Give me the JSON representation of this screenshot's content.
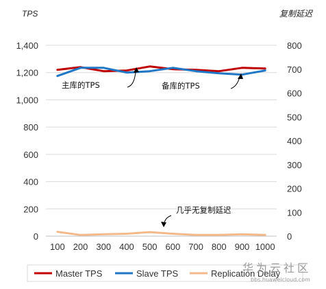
{
  "chart_data": {
    "type": "line",
    "x": [
      100,
      200,
      300,
      400,
      500,
      600,
      700,
      800,
      900,
      1000
    ],
    "left_axis": {
      "title": "TPS",
      "range": [
        0,
        1400
      ],
      "ticks": [
        "0",
        "200",
        "400",
        "600",
        "800",
        "1,000",
        "1,200",
        "1,400"
      ]
    },
    "right_axis": {
      "title": "复制延迟",
      "range": [
        0,
        800
      ],
      "ticks": [
        "0",
        "100",
        "200",
        "300",
        "400",
        "500",
        "600",
        "700",
        "800"
      ]
    },
    "x_ticks": [
      "100",
      "200",
      "300",
      "400",
      "500",
      "600",
      "700",
      "800",
      "900",
      "1000"
    ],
    "series": [
      {
        "name": "Master TPS",
        "axis": "left",
        "color": "#c00000",
        "values": [
          1220,
          1240,
          1210,
          1215,
          1245,
          1225,
          1220,
          1210,
          1235,
          1230
        ]
      },
      {
        "name": "Slave TPS",
        "axis": "left",
        "color": "#1f77c6",
        "values": [
          1175,
          1235,
          1235,
          1200,
          1210,
          1235,
          1210,
          1195,
          1185,
          1215
        ]
      },
      {
        "name": "Replication Delay",
        "axis": "right",
        "color": "#f4b98a",
        "values": [
          18,
          5,
          8,
          10,
          17,
          10,
          5,
          5,
          8,
          5
        ]
      }
    ],
    "annotations": [
      {
        "text": "主库的TPS"
      },
      {
        "text": "备库的TPS"
      },
      {
        "text": "几乎无复制延迟"
      }
    ],
    "grid": "horizontal",
    "legend_position": "bottom"
  },
  "watermark": {
    "brand": "华为云社区",
    "url": "bbs.huaweicloud.com"
  }
}
